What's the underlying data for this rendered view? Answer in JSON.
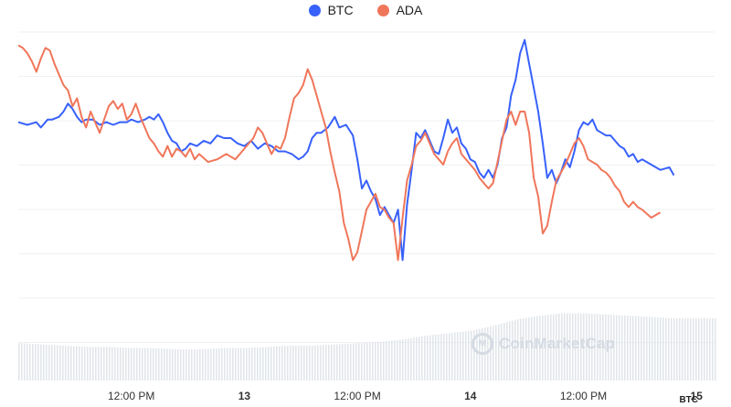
{
  "legend": [
    {
      "name": "BTC",
      "color": "#3861fb"
    },
    {
      "name": "ADA",
      "color": "#f0765a"
    }
  ],
  "watermark": {
    "text": "CoinMarketCap",
    "icon": "coinmarketcap-logo-icon"
  },
  "currency_label": "BTC",
  "chart_data": {
    "type": "line",
    "x_ticks": [
      {
        "label": "12:00 PM",
        "t": 0.5,
        "bold": false
      },
      {
        "label": "13",
        "t": 1.0,
        "bold": true
      },
      {
        "label": "12:00 PM",
        "t": 1.5,
        "bold": false
      },
      {
        "label": "14",
        "t": 2.0,
        "bold": true
      },
      {
        "label": "12:00 PM",
        "t": 2.5,
        "bold": false
      },
      {
        "label": "15",
        "t": 3.0,
        "bold": true
      }
    ],
    "xlim": [
      0.0,
      3.08
    ],
    "ylim": [
      0,
      100
    ],
    "grid": true,
    "legend_position": "top-center",
    "series": [
      {
        "name": "BTC",
        "color": "#3861fb",
        "points": [
          [
            0.0,
            66
          ],
          [
            0.04,
            65
          ],
          [
            0.08,
            66
          ],
          [
            0.1,
            64
          ],
          [
            0.13,
            67
          ],
          [
            0.15,
            67
          ],
          [
            0.18,
            68
          ],
          [
            0.2,
            70
          ],
          [
            0.22,
            73
          ],
          [
            0.24,
            71
          ],
          [
            0.26,
            68
          ],
          [
            0.28,
            66
          ],
          [
            0.3,
            67
          ],
          [
            0.33,
            67
          ],
          [
            0.36,
            65
          ],
          [
            0.39,
            66
          ],
          [
            0.42,
            65
          ],
          [
            0.45,
            66
          ],
          [
            0.48,
            66
          ],
          [
            0.5,
            67
          ],
          [
            0.53,
            66
          ],
          [
            0.56,
            67
          ],
          [
            0.58,
            68
          ],
          [
            0.6,
            67
          ],
          [
            0.62,
            69
          ],
          [
            0.64,
            66
          ],
          [
            0.66,
            62
          ],
          [
            0.68,
            59
          ],
          [
            0.7,
            58
          ],
          [
            0.72,
            55
          ],
          [
            0.74,
            56
          ],
          [
            0.76,
            58
          ],
          [
            0.79,
            57
          ],
          [
            0.82,
            59
          ],
          [
            0.85,
            58
          ],
          [
            0.88,
            61
          ],
          [
            0.91,
            60
          ],
          [
            0.94,
            60
          ],
          [
            0.97,
            58
          ],
          [
            1.0,
            57
          ],
          [
            1.03,
            59
          ],
          [
            1.06,
            56
          ],
          [
            1.09,
            58
          ],
          [
            1.12,
            57
          ],
          [
            1.15,
            55
          ],
          [
            1.18,
            55
          ],
          [
            1.21,
            54
          ],
          [
            1.24,
            52
          ],
          [
            1.26,
            53
          ],
          [
            1.28,
            55
          ],
          [
            1.3,
            60
          ],
          [
            1.32,
            62
          ],
          [
            1.34,
            62
          ],
          [
            1.37,
            64
          ],
          [
            1.4,
            68
          ],
          [
            1.42,
            64
          ],
          [
            1.45,
            65
          ],
          [
            1.48,
            61
          ],
          [
            1.5,
            52
          ],
          [
            1.52,
            41
          ],
          [
            1.54,
            44
          ],
          [
            1.56,
            40
          ],
          [
            1.58,
            37
          ],
          [
            1.6,
            31
          ],
          [
            1.62,
            34
          ],
          [
            1.64,
            31
          ],
          [
            1.66,
            28
          ],
          [
            1.68,
            33
          ],
          [
            1.7,
            14
          ],
          [
            1.72,
            35
          ],
          [
            1.74,
            48
          ],
          [
            1.76,
            62
          ],
          [
            1.78,
            60
          ],
          [
            1.8,
            63
          ],
          [
            1.82,
            59
          ],
          [
            1.84,
            55
          ],
          [
            1.86,
            54
          ],
          [
            1.88,
            60
          ],
          [
            1.9,
            67
          ],
          [
            1.92,
            62
          ],
          [
            1.94,
            64
          ],
          [
            1.96,
            58
          ],
          [
            1.98,
            56
          ],
          [
            2.0,
            52
          ],
          [
            2.02,
            51
          ],
          [
            2.04,
            47
          ],
          [
            2.06,
            45
          ],
          [
            2.08,
            48
          ],
          [
            2.1,
            45
          ],
          [
            2.12,
            50
          ],
          [
            2.14,
            60
          ],
          [
            2.16,
            64
          ],
          [
            2.18,
            76
          ],
          [
            2.2,
            82
          ],
          [
            2.22,
            92
          ],
          [
            2.24,
            97
          ],
          [
            2.26,
            88
          ],
          [
            2.28,
            79
          ],
          [
            2.3,
            70
          ],
          [
            2.32,
            58
          ],
          [
            2.34,
            45
          ],
          [
            2.36,
            48
          ],
          [
            2.38,
            43
          ],
          [
            2.4,
            47
          ],
          [
            2.42,
            52
          ],
          [
            2.44,
            49
          ],
          [
            2.46,
            55
          ],
          [
            2.48,
            63
          ],
          [
            2.5,
            66
          ],
          [
            2.52,
            65
          ],
          [
            2.54,
            67
          ],
          [
            2.56,
            63
          ],
          [
            2.58,
            62
          ],
          [
            2.6,
            61
          ],
          [
            2.62,
            61
          ],
          [
            2.64,
            59
          ],
          [
            2.66,
            57
          ],
          [
            2.68,
            56
          ],
          [
            2.7,
            53
          ],
          [
            2.72,
            54
          ],
          [
            2.74,
            51
          ],
          [
            2.76,
            52
          ],
          [
            2.8,
            50
          ],
          [
            2.84,
            48
          ],
          [
            2.88,
            49
          ],
          [
            2.9,
            46
          ]
        ]
      },
      {
        "name": "ADA",
        "color": "#f0765a",
        "points": [
          [
            0.0,
            95
          ],
          [
            0.02,
            94
          ],
          [
            0.04,
            92
          ],
          [
            0.06,
            89
          ],
          [
            0.08,
            85
          ],
          [
            0.1,
            90
          ],
          [
            0.12,
            94
          ],
          [
            0.14,
            93
          ],
          [
            0.16,
            88
          ],
          [
            0.18,
            84
          ],
          [
            0.2,
            80
          ],
          [
            0.22,
            78
          ],
          [
            0.24,
            72
          ],
          [
            0.26,
            75
          ],
          [
            0.28,
            68
          ],
          [
            0.3,
            64
          ],
          [
            0.32,
            70
          ],
          [
            0.34,
            66
          ],
          [
            0.36,
            62
          ],
          [
            0.38,
            67
          ],
          [
            0.4,
            72
          ],
          [
            0.42,
            74
          ],
          [
            0.44,
            71
          ],
          [
            0.46,
            73
          ],
          [
            0.48,
            67
          ],
          [
            0.5,
            69
          ],
          [
            0.52,
            73
          ],
          [
            0.54,
            68
          ],
          [
            0.56,
            64
          ],
          [
            0.58,
            60
          ],
          [
            0.6,
            58
          ],
          [
            0.62,
            55
          ],
          [
            0.64,
            53
          ],
          [
            0.66,
            57
          ],
          [
            0.68,
            53
          ],
          [
            0.7,
            56
          ],
          [
            0.72,
            55
          ],
          [
            0.74,
            53
          ],
          [
            0.76,
            56
          ],
          [
            0.78,
            52
          ],
          [
            0.8,
            54
          ],
          [
            0.84,
            51
          ],
          [
            0.88,
            52
          ],
          [
            0.92,
            54
          ],
          [
            0.96,
            52
          ],
          [
            1.0,
            56
          ],
          [
            1.04,
            60
          ],
          [
            1.06,
            64
          ],
          [
            1.08,
            62
          ],
          [
            1.1,
            58
          ],
          [
            1.12,
            54
          ],
          [
            1.14,
            57
          ],
          [
            1.16,
            56
          ],
          [
            1.18,
            60
          ],
          [
            1.2,
            68
          ],
          [
            1.22,
            75
          ],
          [
            1.24,
            77
          ],
          [
            1.26,
            80
          ],
          [
            1.28,
            86
          ],
          [
            1.3,
            82
          ],
          [
            1.32,
            76
          ],
          [
            1.34,
            70
          ],
          [
            1.36,
            64
          ],
          [
            1.38,
            55
          ],
          [
            1.4,
            47
          ],
          [
            1.42,
            40
          ],
          [
            1.44,
            28
          ],
          [
            1.46,
            22
          ],
          [
            1.48,
            14
          ],
          [
            1.5,
            17
          ],
          [
            1.52,
            25
          ],
          [
            1.54,
            33
          ],
          [
            1.56,
            36
          ],
          [
            1.58,
            39
          ],
          [
            1.6,
            34
          ],
          [
            1.62,
            33
          ],
          [
            1.64,
            30
          ],
          [
            1.66,
            28
          ],
          [
            1.68,
            14
          ],
          [
            1.7,
            30
          ],
          [
            1.72,
            44
          ],
          [
            1.74,
            50
          ],
          [
            1.76,
            57
          ],
          [
            1.78,
            59
          ],
          [
            1.8,
            62
          ],
          [
            1.82,
            58
          ],
          [
            1.84,
            54
          ],
          [
            1.86,
            52
          ],
          [
            1.88,
            50
          ],
          [
            1.9,
            55
          ],
          [
            1.92,
            58
          ],
          [
            1.94,
            60
          ],
          [
            1.96,
            54
          ],
          [
            1.98,
            52
          ],
          [
            2.0,
            50
          ],
          [
            2.02,
            48
          ],
          [
            2.04,
            45
          ],
          [
            2.06,
            43
          ],
          [
            2.08,
            41
          ],
          [
            2.1,
            43
          ],
          [
            2.12,
            51
          ],
          [
            2.14,
            59
          ],
          [
            2.16,
            67
          ],
          [
            2.18,
            70
          ],
          [
            2.2,
            65
          ],
          [
            2.22,
            70
          ],
          [
            2.24,
            70
          ],
          [
            2.26,
            62
          ],
          [
            2.28,
            45
          ],
          [
            2.3,
            38
          ],
          [
            2.32,
            24
          ],
          [
            2.34,
            27
          ],
          [
            2.36,
            36
          ],
          [
            2.38,
            44
          ],
          [
            2.4,
            47
          ],
          [
            2.42,
            50
          ],
          [
            2.44,
            54
          ],
          [
            2.46,
            58
          ],
          [
            2.48,
            60
          ],
          [
            2.5,
            57
          ],
          [
            2.52,
            52
          ],
          [
            2.54,
            51
          ],
          [
            2.56,
            50
          ],
          [
            2.58,
            48
          ],
          [
            2.6,
            47
          ],
          [
            2.62,
            45
          ],
          [
            2.64,
            42
          ],
          [
            2.66,
            40
          ],
          [
            2.68,
            36
          ],
          [
            2.7,
            34
          ],
          [
            2.72,
            36
          ],
          [
            2.74,
            34
          ],
          [
            2.76,
            33
          ],
          [
            2.8,
            30
          ],
          [
            2.84,
            32
          ]
        ]
      },
      {
        "name": "Volume",
        "color": "#e2e5ea",
        "style": "bars",
        "points": [
          [
            0.0,
            30
          ],
          [
            0.1,
            29
          ],
          [
            0.2,
            28
          ],
          [
            0.3,
            27
          ],
          [
            0.4,
            27
          ],
          [
            0.5,
            26
          ],
          [
            0.6,
            26
          ],
          [
            0.7,
            25
          ],
          [
            0.8,
            25
          ],
          [
            0.9,
            26
          ],
          [
            1.0,
            26
          ],
          [
            1.1,
            27
          ],
          [
            1.2,
            28
          ],
          [
            1.3,
            28
          ],
          [
            1.4,
            29
          ],
          [
            1.5,
            30
          ],
          [
            1.6,
            31
          ],
          [
            1.7,
            33
          ],
          [
            1.8,
            36
          ],
          [
            1.9,
            38
          ],
          [
            2.0,
            40
          ],
          [
            2.1,
            44
          ],
          [
            2.2,
            49
          ],
          [
            2.3,
            52
          ],
          [
            2.4,
            54
          ],
          [
            2.5,
            54
          ],
          [
            2.6,
            53
          ],
          [
            2.7,
            52
          ],
          [
            2.8,
            51
          ],
          [
            2.9,
            50
          ]
        ]
      }
    ]
  }
}
